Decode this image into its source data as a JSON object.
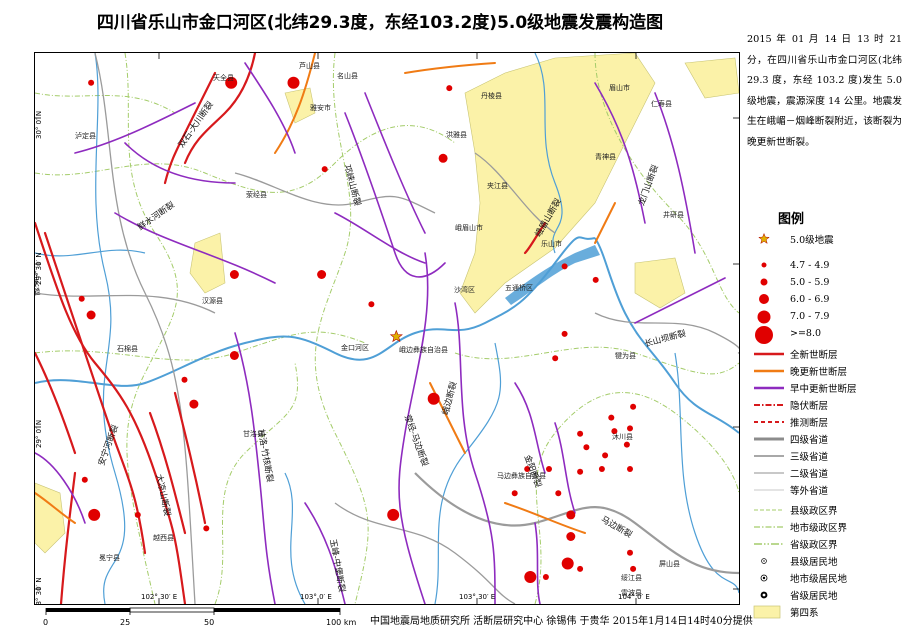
{
  "title": "四川省乐山市金口河区(北纬29.3度，东经103.2度)5.0级地震发震构造图",
  "description": "2015 年 01 月 14 日 13 时 21 分，在四川省乐山市金口河区(北纬 29.3 度，东经 103.2 度)发生 5.0 级地震，震源深度 14 公里。地震发生在峨嵋－烟峰断裂附近，该断裂为晚更新世断裂。",
  "legend": {
    "title": "图例",
    "items": [
      {
        "name": "star",
        "label": "5.0级地震"
      },
      {
        "name": "eq-4.7",
        "label": "4.7 - 4.9"
      },
      {
        "name": "eq-5.0",
        "label": "5.0 - 5.9"
      },
      {
        "name": "eq-6.0",
        "label": "6.0 - 6.9"
      },
      {
        "name": "eq-7.0",
        "label": "7.0 - 7.9"
      },
      {
        "name": "eq-8.0",
        "label": ">=8.0"
      },
      {
        "name": "holocene-fault",
        "label": "全新世断层"
      },
      {
        "name": "late-pleistocene-fault",
        "label": "晚更新世断层"
      },
      {
        "name": "early-mid-pleistocene-fault",
        "label": "早中更新世断层"
      },
      {
        "name": "hidden-fault",
        "label": "隐伏断层"
      },
      {
        "name": "inferred-fault",
        "label": "推测断层"
      },
      {
        "name": "road-4",
        "label": "四级省道"
      },
      {
        "name": "road-3",
        "label": "三级省道"
      },
      {
        "name": "road-2",
        "label": "二级省道"
      },
      {
        "name": "road-other",
        "label": "等外省道"
      },
      {
        "name": "county-boundary",
        "label": "县级政区界"
      },
      {
        "name": "prefecture-boundary",
        "label": "地市级政区界"
      },
      {
        "name": "province-boundary",
        "label": "省级政区界"
      },
      {
        "name": "county-settlement",
        "label": "县级居民地"
      },
      {
        "name": "prefecture-settlement",
        "label": "地市级居民地"
      },
      {
        "name": "province-settlement",
        "label": "省级居民地"
      },
      {
        "name": "quaternary",
        "label": "第四系"
      }
    ]
  },
  "colors": {
    "holocene": "#d7191c",
    "late_pleistocene": "#f07b14",
    "early_pleistocene": "#8e2bbf",
    "river": "#4f9fd6",
    "road": "#9b9b9b",
    "boundary": "#a4cc6a",
    "quaternary": "#fbf2a8",
    "quaternary_edge": "#c8c474",
    "epicenter": "#e0b000"
  },
  "axes": {
    "lon_ticks": [
      "102° 30′ E",
      "103° 0′ E",
      "103° 30′ E",
      "104° 0′ E"
    ],
    "lat_ticks": [
      "30° 0′ N",
      "29° 30′ N",
      "29° 0′ N",
      "28° 30′ N"
    ]
  },
  "scale_bar": {
    "labels": [
      "0",
      "25",
      "50",
      "100 km"
    ]
  },
  "credit": "中国地震局地质研究所   活断层研究中心  徐锡伟  于贵华  2015年1月14日14时40分提供",
  "places": [
    "天全县",
    "芦山县",
    "名山县",
    "雅安市",
    "丹棱县",
    "眉山市",
    "青神县",
    "仁寿县",
    "荥经县",
    "洪雅县",
    "夹江县",
    "峨眉山市",
    "乐山市",
    "井研县",
    "汉源县",
    "石棉县",
    "金口河区",
    "峨边彝族自治县",
    "沙湾区",
    "五通桥区",
    "犍为县",
    "甘洛县",
    "马边彝族自治县",
    "沐川县",
    "泸定县",
    "冕宁县",
    "越西县",
    "屏山县",
    "绥江县",
    "雷波县"
  ],
  "fault_labels": [
    "龙门山断裂",
    "双石-大川断裂",
    "邛崃山断裂",
    "荥经-马边断裂",
    "大渡河断裂",
    "鲜水河断裂",
    "安宁河断裂",
    "大凉山断裂",
    "峨眉山断裂",
    "峨边断裂",
    "金阳断裂",
    "马边断裂",
    "长山坝断裂",
    "甘洛-竹核断裂",
    "玉峰-中堡断裂"
  ],
  "epicenter": {
    "lon": 103.2,
    "lat": 29.3,
    "magnitude": 5.0
  },
  "historic_quakes": [
    {
      "lon": 102.22,
      "lat": 30.24,
      "mag": 4.8
    },
    {
      "lon": 102.67,
      "lat": 30.24,
      "mag": 6.0
    },
    {
      "lon": 102.87,
      "lat": 30.24,
      "mag": 6.0
    },
    {
      "lon": 102.97,
      "lat": 29.92,
      "mag": 4.8
    },
    {
      "lon": 103.37,
      "lat": 30.22,
      "mag": 4.8
    },
    {
      "lon": 103.35,
      "lat": 29.96,
      "mag": 5.5
    },
    {
      "lon": 102.68,
      "lat": 29.53,
      "mag": 5.5
    },
    {
      "lon": 102.96,
      "lat": 29.53,
      "mag": 5.5
    },
    {
      "lon": 102.22,
      "lat": 29.38,
      "mag": 5.5
    },
    {
      "lon": 102.19,
      "lat": 29.44,
      "mag": 4.8
    },
    {
      "lon": 102.68,
      "lat": 29.23,
      "mag": 5.5
    },
    {
      "lon": 102.55,
      "lat": 29.05,
      "mag": 5.5
    },
    {
      "lon": 102.52,
      "lat": 29.14,
      "mag": 4.8
    },
    {
      "lon": 103.32,
      "lat": 29.07,
      "mag": 6.0
    },
    {
      "lon": 103.71,
      "lat": 29.22,
      "mag": 4.8
    },
    {
      "lon": 103.74,
      "lat": 29.56,
      "mag": 4.8
    },
    {
      "lon": 103.84,
      "lat": 29.51,
      "mag": 4.8
    },
    {
      "lon": 103.79,
      "lat": 28.94,
      "mag": 4.8
    },
    {
      "lon": 103.81,
      "lat": 28.89,
      "mag": 4.8
    },
    {
      "lon": 103.79,
      "lat": 28.8,
      "mag": 4.8
    },
    {
      "lon": 103.76,
      "lat": 28.64,
      "mag": 5.5
    },
    {
      "lon": 103.76,
      "lat": 28.56,
      "mag": 5.5
    },
    {
      "lon": 103.75,
      "lat": 28.46,
      "mag": 6.0
    },
    {
      "lon": 103.68,
      "lat": 28.41,
      "mag": 4.8
    },
    {
      "lon": 103.63,
      "lat": 28.41,
      "mag": 6.0
    },
    {
      "lon": 103.69,
      "lat": 28.81,
      "mag": 4.8
    },
    {
      "lon": 103.96,
      "lat": 29.04,
      "mag": 4.8
    },
    {
      "lon": 103.95,
      "lat": 28.96,
      "mag": 4.8
    },
    {
      "lon": 103.95,
      "lat": 28.81,
      "mag": 4.8
    },
    {
      "lon": 103.89,
      "lat": 29.0,
      "mag": 4.8
    },
    {
      "lon": 103.9,
      "lat": 28.95,
      "mag": 4.8
    },
    {
      "lon": 103.94,
      "lat": 28.9,
      "mag": 4.8
    },
    {
      "lon": 103.87,
      "lat": 28.86,
      "mag": 4.8
    },
    {
      "lon": 103.86,
      "lat": 28.81,
      "mag": 4.8
    },
    {
      "lon": 103.62,
      "lat": 28.81,
      "mag": 4.8
    },
    {
      "lon": 103.72,
      "lat": 28.72,
      "mag": 4.8
    },
    {
      "lon": 103.58,
      "lat": 28.72,
      "mag": 4.8
    },
    {
      "lon": 102.23,
      "lat": 28.64,
      "mag": 6.0
    },
    {
      "lon": 102.37,
      "lat": 28.64,
      "mag": 4.8
    },
    {
      "lon": 102.2,
      "lat": 28.77,
      "mag": 4.8
    },
    {
      "lon": 102.59,
      "lat": 28.59,
      "mag": 4.8
    },
    {
      "lon": 103.19,
      "lat": 28.64,
      "mag": 6.0
    },
    {
      "lon": 103.79,
      "lat": 28.44,
      "mag": 4.8
    },
    {
      "lon": 103.95,
      "lat": 28.5,
      "mag": 4.8
    },
    {
      "lon": 103.96,
      "lat": 28.44,
      "mag": 4.8
    },
    {
      "lon": 103.12,
      "lat": 29.42,
      "mag": 4.8
    },
    {
      "lon": 103.74,
      "lat": 29.31,
      "mag": 4.8
    }
  ]
}
